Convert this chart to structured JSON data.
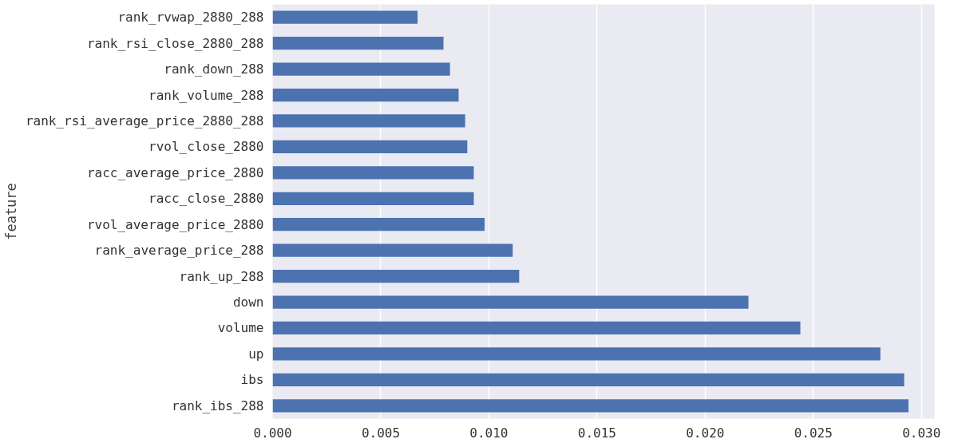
{
  "chart_data": {
    "type": "bar",
    "orientation": "horizontal",
    "ylabel": "feature",
    "categories": [
      "rank_rvwap_2880_288",
      "rank_rsi_close_2880_288",
      "rank_down_288",
      "rank_volume_288",
      "rank_rsi_average_price_2880_288",
      "rvol_close_2880",
      "racc_average_price_2880",
      "racc_close_2880",
      "rvol_average_price_2880",
      "rank_average_price_288",
      "rank_up_288",
      "down",
      "volume",
      "up",
      "ibs",
      "rank_ibs_288"
    ],
    "values": [
      0.0067,
      0.0079,
      0.0082,
      0.0086,
      0.0089,
      0.009,
      0.0093,
      0.0093,
      0.0098,
      0.0111,
      0.0114,
      0.022,
      0.0244,
      0.0281,
      0.0292,
      0.0294
    ],
    "color": "#4c72b0",
    "xlim": [
      0,
      0.0306
    ],
    "xticks": [
      {
        "value": 0,
        "label": "0.000"
      },
      {
        "value": 0.005,
        "label": "0.005"
      },
      {
        "value": 0.01,
        "label": "0.010"
      },
      {
        "value": 0.015,
        "label": "0.015"
      },
      {
        "value": 0.02,
        "label": "0.020"
      },
      {
        "value": 0.025,
        "label": "0.025"
      },
      {
        "value": 0.03,
        "label": "0.030"
      }
    ],
    "grid": "x"
  }
}
